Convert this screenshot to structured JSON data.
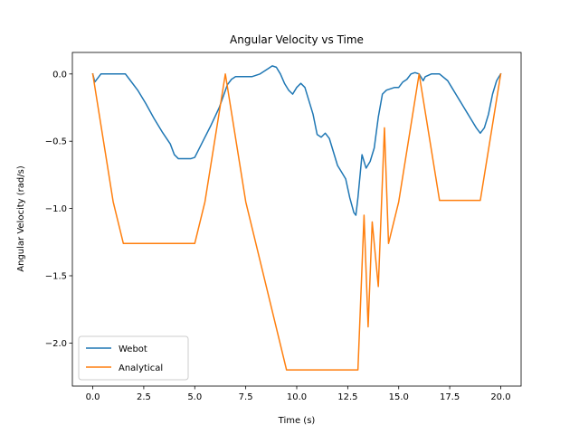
{
  "chart_data": {
    "type": "line",
    "title": "Angular Velocity vs Time",
    "xlabel": "Time (s)",
    "ylabel": "Angular Velocity (rad/s)",
    "xlim": [
      -1.0,
      21.0
    ],
    "ylim": [
      -2.32,
      0.16
    ],
    "xticks": [
      0,
      2.5,
      5,
      7.5,
      10,
      12.5,
      15,
      17.5,
      20
    ],
    "xtick_labels": [
      "0.0",
      "2.5",
      "5.0",
      "7.5",
      "10.0",
      "12.5",
      "15.0",
      "17.5",
      "20.0"
    ],
    "yticks": [
      0,
      -0.5,
      -1.0,
      -1.5,
      -2.0
    ],
    "ytick_labels": [
      "0.0",
      "−0.5",
      "−1.0",
      "−1.5",
      "−2.0"
    ],
    "grid": false,
    "legend_position": "lower-left",
    "series": [
      {
        "name": "Webot",
        "color": "#1f77b4",
        "x": [
          0,
          0.1,
          0.4,
          1.0,
          1.6,
          1.8,
          2.2,
          2.6,
          3.0,
          3.4,
          3.8,
          4.0,
          4.2,
          4.4,
          4.6,
          4.8,
          5.0,
          5.4,
          5.8,
          6.2,
          6.6,
          6.8,
          7.0,
          7.4,
          7.8,
          8.2,
          8.6,
          8.8,
          9.0,
          9.2,
          9.4,
          9.6,
          9.8,
          10.0,
          10.2,
          10.4,
          10.6,
          10.8,
          11.0,
          11.2,
          11.4,
          11.6,
          11.8,
          12.0,
          12.2,
          12.4,
          12.6,
          12.8,
          12.9,
          13.0,
          13.2,
          13.4,
          13.6,
          13.8,
          14.0,
          14.2,
          14.4,
          14.6,
          14.8,
          15.0,
          15.2,
          15.4,
          15.6,
          15.8,
          16.0,
          16.2,
          16.3,
          16.6,
          17.0,
          17.4,
          17.6,
          17.8,
          18.0,
          18.2,
          18.4,
          18.6,
          18.8,
          19.0,
          19.2,
          19.4,
          19.6,
          19.8,
          20.0
        ],
        "values": [
          0.0,
          -0.06,
          0.0,
          0.0,
          0.0,
          -0.04,
          -0.12,
          -0.22,
          -0.33,
          -0.43,
          -0.52,
          -0.6,
          -0.63,
          -0.63,
          -0.63,
          -0.63,
          -0.62,
          -0.5,
          -0.38,
          -0.25,
          -0.08,
          -0.04,
          -0.02,
          -0.02,
          -0.02,
          0.0,
          0.04,
          0.06,
          0.05,
          0.0,
          -0.07,
          -0.12,
          -0.15,
          -0.1,
          -0.07,
          -0.1,
          -0.2,
          -0.3,
          -0.45,
          -0.47,
          -0.44,
          -0.48,
          -0.58,
          -0.68,
          -0.73,
          -0.78,
          -0.92,
          -1.03,
          -1.05,
          -0.92,
          -0.6,
          -0.7,
          -0.65,
          -0.55,
          -0.32,
          -0.15,
          -0.12,
          -0.11,
          -0.1,
          -0.1,
          -0.06,
          -0.04,
          0.0,
          0.01,
          0.0,
          -0.05,
          -0.02,
          0.0,
          0.0,
          -0.05,
          -0.1,
          -0.15,
          -0.2,
          -0.25,
          -0.3,
          -0.35,
          -0.4,
          -0.44,
          -0.4,
          -0.3,
          -0.15,
          -0.05,
          0.0
        ]
      },
      {
        "name": "Analytical",
        "color": "#ff7f0e",
        "x": [
          0,
          1.0,
          1.5,
          5.0,
          5.5,
          6.5,
          7.5,
          9.5,
          13.0,
          13.3,
          13.5,
          13.7,
          14.0,
          14.3,
          14.5,
          15.0,
          16.0,
          17.0,
          19.0,
          20.0
        ],
        "values": [
          0.0,
          -0.95,
          -1.26,
          -1.26,
          -0.95,
          0.0,
          -0.95,
          -2.2,
          -2.2,
          -1.05,
          -1.88,
          -1.1,
          -1.58,
          -0.4,
          -1.26,
          -0.95,
          0.0,
          -0.94,
          -0.94,
          0.0
        ]
      }
    ]
  }
}
